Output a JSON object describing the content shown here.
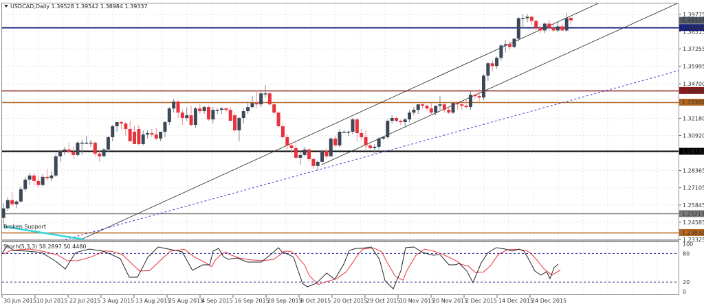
{
  "header": {
    "symbol_label": "USDCAD,Daily",
    "ohlc": "1.39528 1.39542 1.38984 1.39337"
  },
  "indicator": {
    "label": "Stoch(5,3,3) 58.2897 50.4480",
    "levels": [
      "100",
      "80",
      "20",
      "0"
    ]
  },
  "annotations": {
    "broken_support": "Broken Support"
  },
  "colors": {
    "bull": "#3c4757",
    "bear": "#e8323c",
    "line_blue": "#1a237e",
    "line_darkred": "#8b1a1a",
    "line_brown": "#b5651d",
    "line_black": "#000000",
    "line_gray": "#7a7a7a",
    "trend_cyan": "#33d6e0",
    "dotted_blue": "#3a3ad6",
    "stoch_main": "#222222",
    "stoch_signal": "#e8323c"
  },
  "chart_data": {
    "type": "candlestick",
    "title": "USDCAD,Daily",
    "xlabel": "",
    "ylabel": "",
    "x_tick_labels": [
      "30 Jun 2015",
      "10 Jul 2015",
      "22 Jul 2015",
      "3 Aug 2015",
      "13 Aug 2015",
      "25 Aug 2015",
      "4 Sep 2015",
      "16 Sep 2015",
      "28 Sep 2015",
      "8 Oct 2015",
      "20 Oct 2015",
      "29 Oct 2015",
      "10 Nov 2015",
      "20 Nov 2015",
      "2 Dec 2015",
      "14 Dec 2015",
      "24 Dec 2015"
    ],
    "y_tick_labels": [
      "1.39775",
      "1.38515",
      "1.37255",
      "1.35995",
      "1.34700",
      "1.33440",
      "1.32180",
      "1.30920",
      "1.29660",
      "1.28365",
      "1.27105",
      "1.25845",
      "1.24585",
      "1.23325"
    ],
    "ylim": [
      1.232,
      1.403
    ],
    "horizontal_lines": [
      {
        "price": 1.38814,
        "label": "1.38814",
        "color": "#1a237e"
      },
      {
        "price": 1.34215,
        "label": "1.34215",
        "color": "#8b1a1a"
      },
      {
        "price": 1.3336,
        "label": "1.33360",
        "color": "#b5651d"
      },
      {
        "price": 1.2977,
        "label": "1.29770",
        "color": "#000000"
      },
      {
        "price": 1.25213,
        "label": "1.25213",
        "color": "#7a7a7a"
      },
      {
        "price": 1.2383,
        "label": "1.23830",
        "color": "#b5651d"
      }
    ],
    "current_price": {
      "price": 1.39337,
      "label": "1.39337"
    },
    "candles_ohlc": [
      [
        1.249,
        1.26,
        1.244,
        1.256
      ],
      [
        1.256,
        1.264,
        1.254,
        1.262
      ],
      [
        1.262,
        1.268,
        1.257,
        1.259
      ],
      [
        1.259,
        1.262,
        1.256,
        1.261
      ],
      [
        1.261,
        1.272,
        1.26,
        1.27
      ],
      [
        1.27,
        1.279,
        1.268,
        1.277
      ],
      [
        1.277,
        1.282,
        1.273,
        1.28
      ],
      [
        1.28,
        1.282,
        1.273,
        1.276
      ],
      [
        1.276,
        1.28,
        1.271,
        1.273
      ],
      [
        1.273,
        1.281,
        1.272,
        1.279
      ],
      [
        1.279,
        1.285,
        1.276,
        1.278
      ],
      [
        1.278,
        1.283,
        1.276,
        1.28
      ],
      [
        1.28,
        1.296,
        1.279,
        1.294
      ],
      [
        1.294,
        1.299,
        1.29,
        1.298
      ],
      [
        1.298,
        1.301,
        1.295,
        1.299
      ],
      [
        1.299,
        1.304,
        1.296,
        1.297
      ],
      [
        1.297,
        1.301,
        1.292,
        1.295
      ],
      [
        1.295,
        1.305,
        1.294,
        1.304
      ],
      [
        1.304,
        1.306,
        1.295,
        1.304
      ],
      [
        1.304,
        1.309,
        1.303,
        1.304
      ],
      [
        1.304,
        1.306,
        1.301,
        1.304
      ],
      [
        1.304,
        1.305,
        1.294,
        1.296
      ],
      [
        1.296,
        1.299,
        1.29,
        1.294
      ],
      [
        1.294,
        1.3,
        1.294,
        1.299
      ],
      [
        1.299,
        1.309,
        1.297,
        1.308
      ],
      [
        1.308,
        1.317,
        1.305,
        1.316
      ],
      [
        1.316,
        1.319,
        1.312,
        1.319
      ],
      [
        1.319,
        1.32,
        1.314,
        1.318
      ],
      [
        1.318,
        1.319,
        1.309,
        1.314
      ],
      [
        1.314,
        1.32,
        1.308,
        1.305
      ],
      [
        1.312,
        1.316,
        1.304,
        1.303
      ],
      [
        1.314,
        1.317,
        1.302,
        1.303
      ],
      [
        1.303,
        1.313,
        1.302,
        1.31
      ],
      [
        1.31,
        1.313,
        1.307,
        1.311
      ],
      [
        1.311,
        1.314,
        1.308,
        1.31
      ],
      [
        1.31,
        1.315,
        1.306,
        1.307
      ],
      [
        1.307,
        1.312,
        1.305,
        1.312
      ],
      [
        1.312,
        1.32,
        1.308,
        1.319
      ],
      [
        1.319,
        1.33,
        1.317,
        1.329
      ],
      [
        1.329,
        1.336,
        1.326,
        1.334
      ],
      [
        1.334,
        1.335,
        1.322,
        1.326
      ],
      [
        1.326,
        1.328,
        1.317,
        1.322
      ],
      [
        1.322,
        1.33,
        1.32,
        1.324
      ],
      [
        1.324,
        1.331,
        1.316,
        1.317
      ],
      [
        1.317,
        1.33,
        1.315,
        1.329
      ],
      [
        1.329,
        1.332,
        1.325,
        1.327
      ],
      [
        1.327,
        1.331,
        1.325,
        1.33
      ],
      [
        1.33,
        1.331,
        1.32,
        1.321
      ],
      [
        1.321,
        1.33,
        1.318,
        1.328
      ],
      [
        1.328,
        1.329,
        1.325,
        1.328
      ],
      [
        1.328,
        1.33,
        1.325,
        1.329
      ],
      [
        1.329,
        1.33,
        1.326,
        1.328
      ],
      [
        1.328,
        1.33,
        1.322,
        1.32
      ],
      [
        1.324,
        1.326,
        1.312,
        1.313
      ],
      [
        1.313,
        1.323,
        1.305,
        1.322
      ],
      [
        1.322,
        1.329,
        1.318,
        1.327
      ],
      [
        1.327,
        1.334,
        1.325,
        1.33
      ],
      [
        1.33,
        1.338,
        1.329,
        1.333
      ],
      [
        1.333,
        1.342,
        1.329,
        1.332
      ],
      [
        1.332,
        1.342,
        1.33,
        1.34
      ],
      [
        1.34,
        1.346,
        1.337,
        1.34
      ],
      [
        1.34,
        1.341,
        1.331,
        1.332
      ],
      [
        1.332,
        1.333,
        1.324,
        1.326
      ],
      [
        1.326,
        1.327,
        1.315,
        1.316
      ],
      [
        1.316,
        1.318,
        1.307,
        1.308
      ],
      [
        1.308,
        1.31,
        1.299,
        1.302
      ],
      [
        1.302,
        1.304,
        1.296,
        1.3
      ],
      [
        1.3,
        1.304,
        1.292,
        1.293
      ],
      [
        1.293,
        1.298,
        1.288,
        1.295
      ],
      [
        1.295,
        1.301,
        1.294,
        1.299
      ],
      [
        1.299,
        1.3,
        1.29,
        1.292
      ],
      [
        1.292,
        1.293,
        1.285,
        1.287
      ],
      [
        1.287,
        1.291,
        1.284,
        1.29
      ],
      [
        1.29,
        1.299,
        1.289,
        1.298
      ],
      [
        1.298,
        1.3,
        1.292,
        1.294
      ],
      [
        1.294,
        1.308,
        1.294,
        1.307
      ],
      [
        1.307,
        1.309,
        1.301,
        1.302
      ],
      [
        1.302,
        1.314,
        1.301,
        1.312
      ],
      [
        1.312,
        1.313,
        1.311,
        1.312
      ],
      [
        1.312,
        1.313,
        1.309,
        1.312
      ],
      [
        1.312,
        1.322,
        1.31,
        1.321
      ],
      [
        1.321,
        1.322,
        1.305,
        1.311
      ],
      [
        1.311,
        1.314,
        1.306,
        1.308
      ],
      [
        1.308,
        1.313,
        1.299,
        1.302
      ],
      [
        1.302,
        1.304,
        1.298,
        1.3
      ],
      [
        1.3,
        1.303,
        1.296,
        1.301
      ],
      [
        1.301,
        1.308,
        1.299,
        1.307
      ],
      [
        1.307,
        1.309,
        1.306,
        1.308
      ],
      [
        1.308,
        1.321,
        1.307,
        1.32
      ],
      [
        1.32,
        1.324,
        1.318,
        1.322
      ],
      [
        1.322,
        1.323,
        1.319,
        1.32
      ],
      [
        1.32,
        1.321,
        1.317,
        1.319
      ],
      [
        1.319,
        1.322,
        1.315,
        1.321
      ],
      [
        1.321,
        1.328,
        1.319,
        1.326
      ],
      [
        1.326,
        1.33,
        1.324,
        1.328
      ],
      [
        1.328,
        1.332,
        1.325,
        1.332
      ],
      [
        1.332,
        1.334,
        1.329,
        1.331
      ],
      [
        1.331,
        1.332,
        1.328,
        1.329
      ],
      [
        1.329,
        1.333,
        1.324,
        1.326
      ],
      [
        1.326,
        1.331,
        1.324,
        1.331
      ],
      [
        1.331,
        1.338,
        1.328,
        1.332
      ],
      [
        1.332,
        1.333,
        1.326,
        1.328
      ],
      [
        1.328,
        1.33,
        1.325,
        1.326
      ],
      [
        1.326,
        1.334,
        1.325,
        1.333
      ],
      [
        1.333,
        1.334,
        1.328,
        1.332
      ],
      [
        1.332,
        1.333,
        1.328,
        1.331
      ],
      [
        1.331,
        1.336,
        1.329,
        1.33
      ],
      [
        1.33,
        1.342,
        1.328,
        1.339
      ],
      [
        1.339,
        1.34,
        1.336,
        1.338
      ],
      [
        1.338,
        1.343,
        1.334,
        1.337
      ],
      [
        1.337,
        1.354,
        1.335,
        1.353
      ],
      [
        1.353,
        1.363,
        1.349,
        1.362
      ],
      [
        1.362,
        1.364,
        1.356,
        1.36
      ],
      [
        1.36,
        1.367,
        1.358,
        1.366
      ],
      [
        1.366,
        1.376,
        1.364,
        1.375
      ],
      [
        1.375,
        1.379,
        1.37,
        1.376
      ],
      [
        1.376,
        1.378,
        1.372,
        1.374
      ],
      [
        1.374,
        1.38,
        1.373,
        1.38
      ],
      [
        1.38,
        1.396,
        1.378,
        1.395
      ],
      [
        1.395,
        1.398,
        1.388,
        1.395
      ],
      [
        1.395,
        1.398,
        1.392,
        1.396
      ],
      [
        1.396,
        1.397,
        1.39,
        1.393
      ],
      [
        1.393,
        1.394,
        1.386,
        1.388
      ],
      [
        1.388,
        1.39,
        1.384,
        1.386
      ],
      [
        1.386,
        1.392,
        1.384,
        1.391
      ],
      [
        1.391,
        1.394,
        1.386,
        1.388
      ],
      [
        1.388,
        1.392,
        1.385,
        1.386
      ],
      [
        1.386,
        1.392,
        1.385,
        1.389
      ],
      [
        1.389,
        1.391,
        1.386,
        1.386
      ],
      [
        1.386,
        1.399,
        1.385,
        1.395
      ],
      [
        1.3953,
        1.3954,
        1.3898,
        1.3934
      ]
    ]
  }
}
